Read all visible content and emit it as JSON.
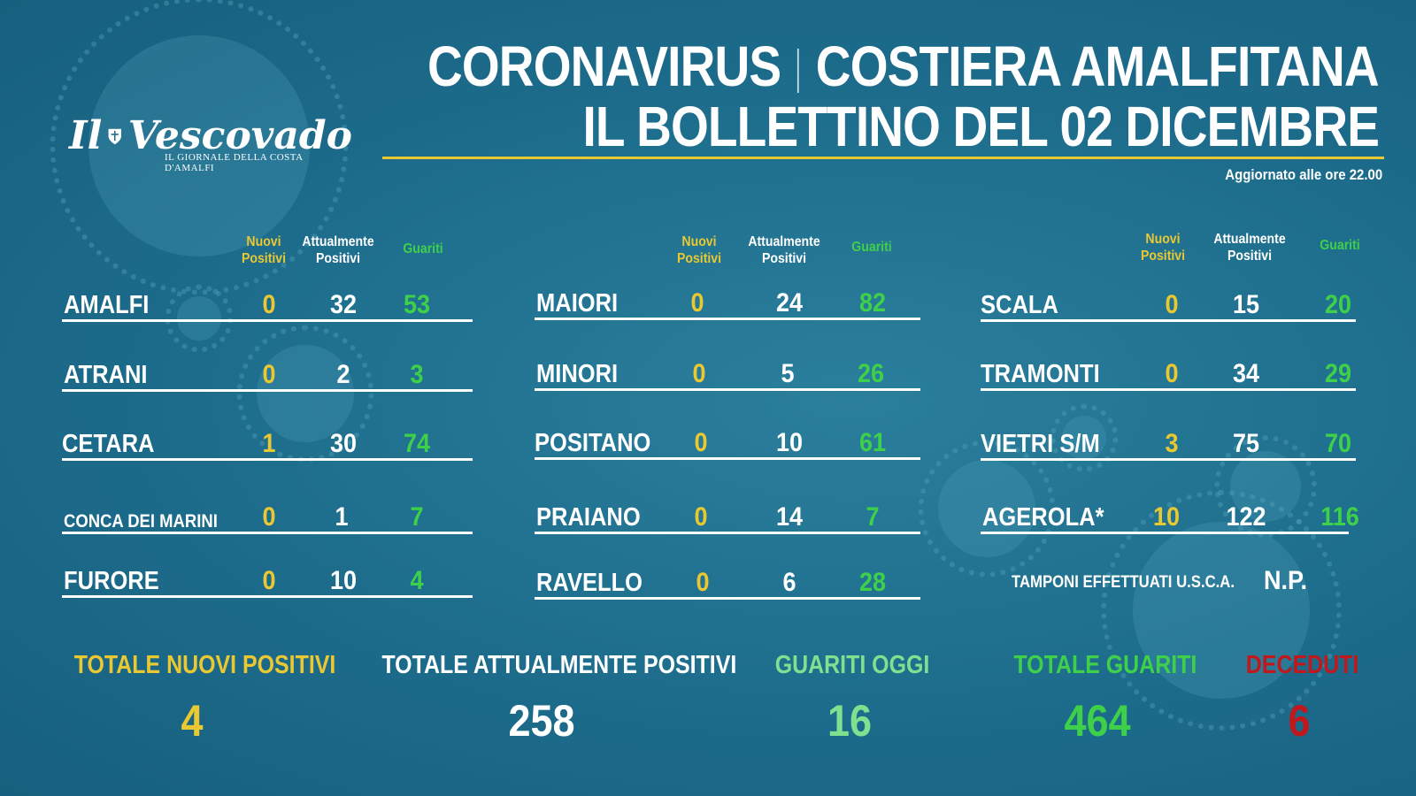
{
  "header": {
    "title_left": "CORONAVIRUS",
    "title_right": "COSTIERA AMALFITANA",
    "subtitle": "IL BOLLETTINO DEL 02 DICEMBRE",
    "updated": "Aggiornato alle ore 22.00"
  },
  "logo": {
    "name": "Il Vescovado",
    "tagline": "IL GIORNALE DELLA COSTA D'AMALFI"
  },
  "column_headers": {
    "nuovi": "Nuovi\nPositivi",
    "attualmente": "Attualmente\nPositivi",
    "guariti": "Guariti"
  },
  "columns": [
    [
      {
        "town": "AMALFI",
        "nuovi": "0",
        "attualmente": "32",
        "guariti": "53"
      },
      {
        "town": "ATRANI",
        "nuovi": "0",
        "attualmente": "2",
        "guariti": "3"
      },
      {
        "town": "CETARA",
        "nuovi": "1",
        "attualmente": "30",
        "guariti": "74"
      },
      {
        "town": "CONCA DEI MARINI",
        "nuovi": "0",
        "attualmente": "1",
        "guariti": "7"
      },
      {
        "town": "FURORE",
        "nuovi": "0",
        "attualmente": "10",
        "guariti": "4"
      }
    ],
    [
      {
        "town": "MAIORI",
        "nuovi": "0",
        "attualmente": "24",
        "guariti": "82"
      },
      {
        "town": "MINORI",
        "nuovi": "0",
        "attualmente": "5",
        "guariti": "26"
      },
      {
        "town": "POSITANO",
        "nuovi": "0",
        "attualmente": "10",
        "guariti": "61"
      },
      {
        "town": "PRAIANO",
        "nuovi": "0",
        "attualmente": "14",
        "guariti": "7"
      },
      {
        "town": "RAVELLO",
        "nuovi": "0",
        "attualmente": "6",
        "guariti": "28"
      }
    ],
    [
      {
        "town": "SCALA",
        "nuovi": "0",
        "attualmente": "15",
        "guariti": "20"
      },
      {
        "town": "TRAMONTI",
        "nuovi": "0",
        "attualmente": "34",
        "guariti": "29"
      },
      {
        "town": "VIETRI S/M",
        "nuovi": "3",
        "attualmente": "75",
        "guariti": "70"
      },
      {
        "town": "AGEROLA*",
        "nuovi": "10",
        "attualmente": "122",
        "guariti": "116"
      }
    ]
  ],
  "tamponi": {
    "label": "TAMPONI  EFFETTUATI U.S.C.A.",
    "value": "N.P."
  },
  "totals": [
    {
      "label": "TOTALE NUOVI POSITIVI",
      "value": "4",
      "color": "#e9c832"
    },
    {
      "label": "TOTALE ATTUALMENTE POSITIVI",
      "value": "258",
      "color": "#ffffff"
    },
    {
      "label": "GUARITI OGGI",
      "value": "16",
      "color": "#7fe08f"
    },
    {
      "label": "TOTALE GUARITI",
      "value": "464",
      "color": "#3fd04a"
    },
    {
      "label": "DECEDUTI",
      "value": "6",
      "color": "#c0181c"
    }
  ],
  "colors": {
    "background": "#1f6f8f",
    "accent_yellow": "#e9c832",
    "green": "#3fd04a"
  }
}
